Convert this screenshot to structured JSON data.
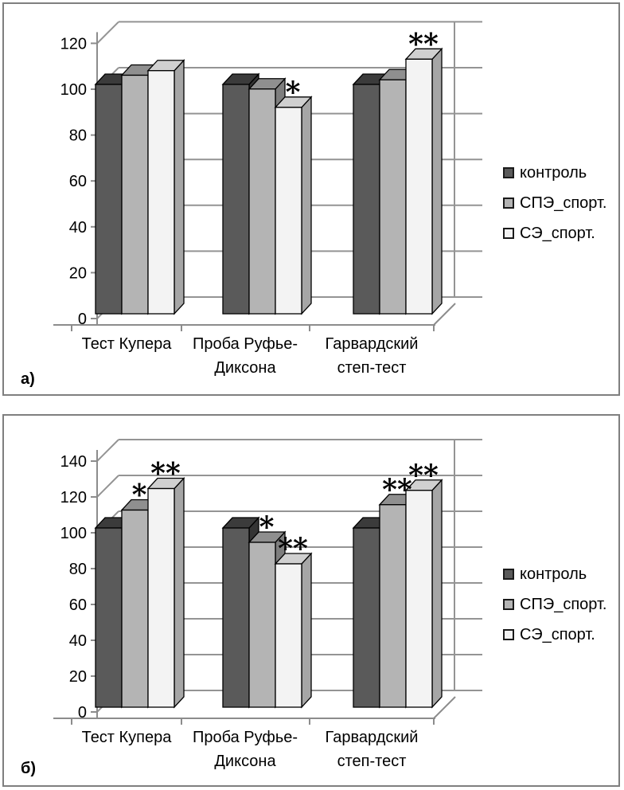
{
  "colors": {
    "panel_border": "#7f7f7f",
    "grid": "#949494",
    "axis": "#8c8c8c",
    "bar_outline": "#000000",
    "text": "#000000",
    "series": {
      "контроль": {
        "front": "#5a5a5a",
        "top": "#3b3b3b",
        "side": "#343434"
      },
      "СПЭ_спорт.": {
        "front": "#b4b4b4",
        "top": "#8f8f8f",
        "side": "#7e7e7e"
      },
      "СЭ_спорт.": {
        "front": "#f3f3f3",
        "top": "#d0d0d0",
        "side": "#a6a6a6"
      }
    }
  },
  "legend": {
    "items": [
      "контроль",
      "СПЭ_спорт.",
      "СЭ_спорт."
    ]
  },
  "chart_data": [
    {
      "type": "bar",
      "style": "3d-clustered-column",
      "panel_label": "а)",
      "categories": [
        "Тест Купера",
        "Проба Руфье-Диксона",
        "Гарвардский степ-тест"
      ],
      "categories_wrapped": [
        [
          "Тест Купера"
        ],
        [
          "Проба Руфье-",
          "Диксона"
        ],
        [
          "Гарвардский",
          "степ-тест"
        ]
      ],
      "series": [
        {
          "name": "контроль",
          "values": [
            100,
            100,
            100
          ],
          "annotations": [
            "",
            "",
            ""
          ]
        },
        {
          "name": "СПЭ_спорт.",
          "values": [
            104,
            98,
            102
          ],
          "annotations": [
            "",
            "",
            ""
          ]
        },
        {
          "name": "СЭ_спорт.",
          "values": [
            106,
            90,
            111
          ],
          "annotations": [
            "",
            "*",
            "**"
          ]
        }
      ],
      "ylim": [
        0,
        120
      ],
      "yticks": [
        0,
        20,
        40,
        60,
        80,
        100,
        120
      ],
      "grid": true,
      "legend_position": "right"
    },
    {
      "type": "bar",
      "style": "3d-clustered-column",
      "panel_label": "б)",
      "categories": [
        "Тест Купера",
        "Проба Руфье-Диксона",
        "Гарвардский степ-тест"
      ],
      "categories_wrapped": [
        [
          "Тест Купера"
        ],
        [
          "Проба Руфье-",
          "Диксона"
        ],
        [
          "Гарвардский",
          "степ-тест"
        ]
      ],
      "series": [
        {
          "name": "контроль",
          "values": [
            100,
            100,
            100
          ],
          "annotations": [
            "",
            "",
            ""
          ]
        },
        {
          "name": "СПЭ_спорт.",
          "values": [
            110,
            92,
            113
          ],
          "annotations": [
            "*",
            "*",
            "**"
          ]
        },
        {
          "name": "СЭ_спорт.",
          "values": [
            122,
            80,
            121
          ],
          "annotations": [
            "**",
            "**",
            "**"
          ]
        }
      ],
      "ylim": [
        0,
        140
      ],
      "yticks": [
        0,
        20,
        40,
        60,
        80,
        100,
        120,
        140
      ],
      "grid": true,
      "legend_position": "right"
    }
  ]
}
